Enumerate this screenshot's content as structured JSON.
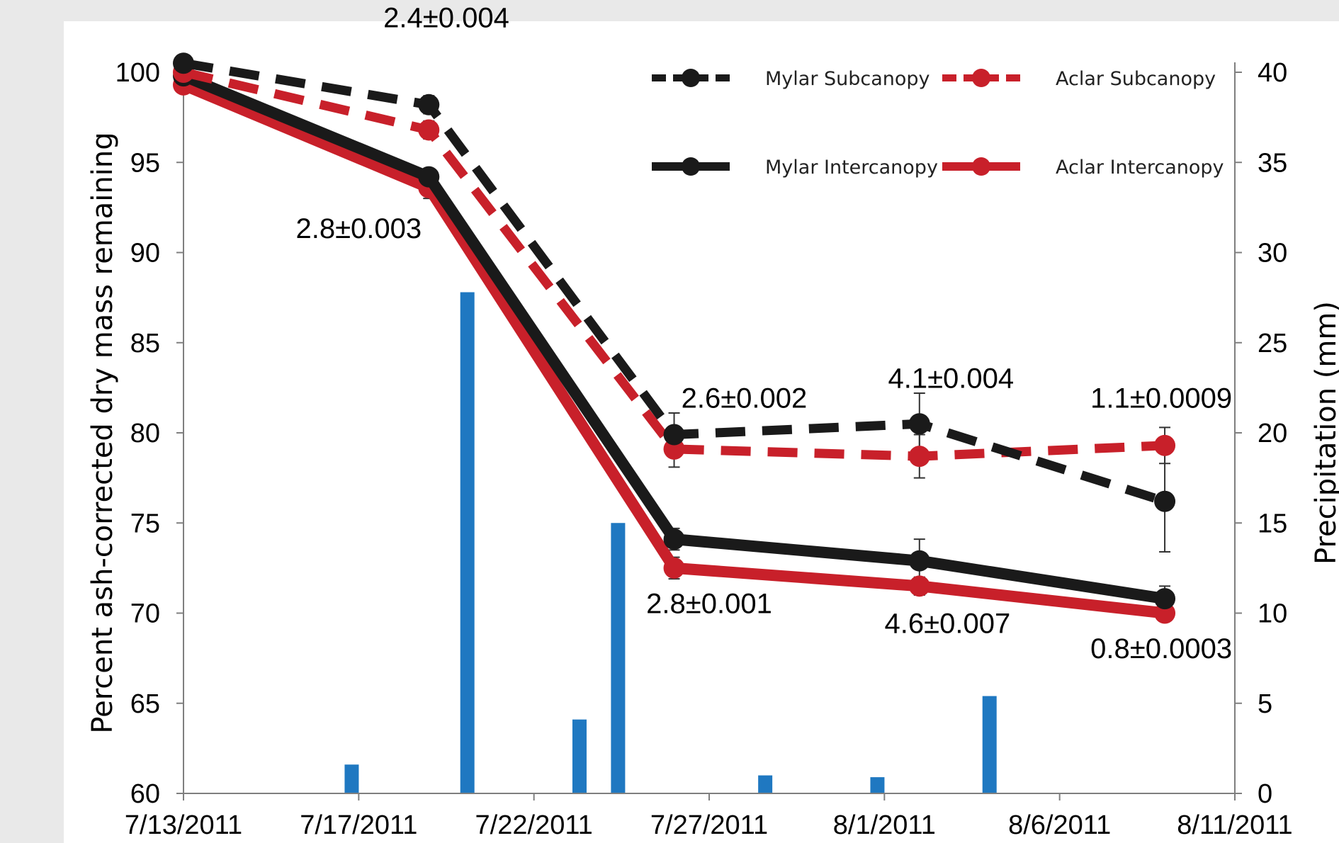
{
  "chart_data": {
    "type": "line",
    "x_start": "7/13/2011",
    "xlim": [
      0,
      30
    ],
    "x_ticks": [
      {
        "offset": 0,
        "label": "7/13/2011"
      },
      {
        "offset": 5,
        "label": "7/17/2011"
      },
      {
        "offset": 10,
        "label": "7/22/2011"
      },
      {
        "offset": 15,
        "label": "7/27/2011"
      },
      {
        "offset": 20,
        "label": "8/1/2011"
      },
      {
        "offset": 25,
        "label": "8/6/2011"
      },
      {
        "offset": 30,
        "label": "8/11/2011"
      }
    ],
    "ylabel": "Percent ash-corrected dry mass remaining",
    "ylim": [
      60,
      100
    ],
    "y_ticks": [
      100,
      95,
      90,
      85,
      80,
      75,
      70,
      65,
      60
    ],
    "y2label": "Precipitation (mm)",
    "y2lim": [
      0,
      40
    ],
    "y2_ticks": [
      40,
      35,
      30,
      25,
      20,
      15,
      10,
      5,
      0
    ],
    "series": [
      {
        "name": "Mylar Subcanopy",
        "color": "#1a1a1a",
        "style": "dashed",
        "x": [
          0,
          7,
          14,
          21,
          28
        ],
        "y": [
          100.5,
          98.2,
          79.9,
          80.5,
          76.2
        ],
        "err": [
          0,
          0.5,
          1.2,
          1.7,
          2.8
        ]
      },
      {
        "name": "Aclar Subcanopy",
        "color": "#c8202a",
        "style": "dashed",
        "x": [
          0,
          7,
          14,
          21,
          28
        ],
        "y": [
          100.0,
          96.8,
          79.1,
          78.7,
          79.3
        ],
        "err": [
          0,
          0.5,
          1.0,
          1.2,
          1.0
        ]
      },
      {
        "name": "Mylar Intercanopy",
        "color": "#1a1a1a",
        "style": "solid",
        "x": [
          0,
          7,
          14,
          21,
          28
        ],
        "y": [
          99.8,
          94.2,
          74.1,
          72.9,
          70.8
        ],
        "err": [
          0,
          0.3,
          0.6,
          1.2,
          0.7
        ]
      },
      {
        "name": "Aclar Intercanopy",
        "color": "#c8202a",
        "style": "solid",
        "x": [
          0,
          7,
          14,
          21,
          28
        ],
        "y": [
          99.3,
          93.6,
          72.5,
          71.5,
          70.0
        ],
        "err": [
          0,
          0.6,
          0.6,
          0.5,
          0.4
        ]
      }
    ],
    "precipitation": {
      "color": "#1f78c1",
      "x": [
        4.8,
        8.1,
        11.3,
        12.4,
        16.6,
        19.8,
        23.0
      ],
      "values": [
        1.6,
        27.8,
        4.1,
        15.0,
        1.0,
        0.9,
        5.4
      ]
    },
    "annotations": [
      {
        "text": "2.4±0.004",
        "x": 7.5,
        "y": 102.5
      },
      {
        "text": "2.8±0.003",
        "x": 5.0,
        "y": 90.8
      },
      {
        "text": "2.6±0.002",
        "x": 16.0,
        "y": 81.4
      },
      {
        "text": "2.8±0.001",
        "x": 15.0,
        "y": 70.0
      },
      {
        "text": "4.1±0.004",
        "x": 21.9,
        "y": 82.5
      },
      {
        "text": "4.6±0.007",
        "x": 21.8,
        "y": 68.9
      },
      {
        "text": "1.1±0.0009",
        "x": 27.9,
        "y": 81.4
      },
      {
        "text": "0.8±0.0003",
        "x": 27.9,
        "y": 67.5
      }
    ],
    "legend_position": "top-right",
    "grid": false
  }
}
